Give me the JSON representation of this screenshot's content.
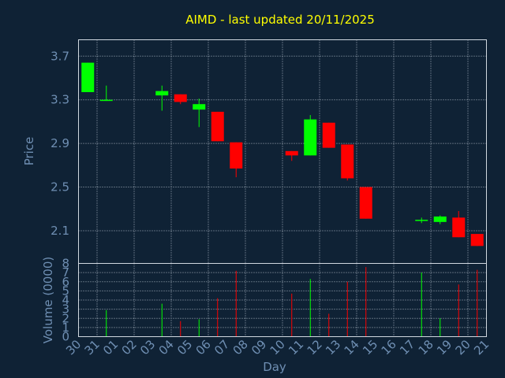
{
  "colors": {
    "background": "#0f2235",
    "title": "#ffff00",
    "axis_text": "#6f8fb3",
    "frame": "#d0d8e0",
    "grid": "#a8b4c0",
    "up": "#00ff00",
    "down": "#ff0000"
  },
  "chart_data": [
    {
      "type": "candlestick",
      "title": "AIMD - last updated 20/11/2025",
      "xlabel": "Day",
      "ylabel": "Price",
      "ylim": [
        1.8,
        3.85
      ],
      "y_ticks": [
        "3.7",
        "3.3",
        "2.9",
        "2.5",
        "2.1"
      ],
      "y_tick_values": [
        3.7,
        3.3,
        2.9,
        2.5,
        2.1
      ],
      "grid": true,
      "x_ticks": [
        "30",
        "31",
        "01",
        "02",
        "03",
        "04",
        "05",
        "06",
        "07",
        "08",
        "09",
        "10",
        "11",
        "12",
        "13",
        "14",
        "15",
        "16",
        "17",
        "18",
        "19",
        "20",
        "21"
      ],
      "candles": [
        {
          "slot": 0,
          "open": 3.37,
          "close": 3.64,
          "high": 3.64,
          "low": 3.37
        },
        {
          "slot": 1,
          "open": 3.29,
          "close": 3.3,
          "high": 3.43,
          "low": 3.29
        },
        {
          "slot": 4,
          "open": 3.34,
          "close": 3.38,
          "high": 3.43,
          "low": 3.2
        },
        {
          "slot": 5,
          "open": 3.35,
          "close": 3.28,
          "high": 3.35,
          "low": 3.26
        },
        {
          "slot": 6,
          "open": 3.21,
          "close": 3.26,
          "high": 3.31,
          "low": 3.05
        },
        {
          "slot": 7,
          "open": 3.19,
          "close": 2.92,
          "high": 3.19,
          "low": 2.92
        },
        {
          "slot": 8,
          "open": 2.91,
          "close": 2.67,
          "high": 2.91,
          "low": 2.59
        },
        {
          "slot": 11,
          "open": 2.83,
          "close": 2.79,
          "high": 2.83,
          "low": 2.74
        },
        {
          "slot": 12,
          "open": 2.79,
          "close": 3.12,
          "high": 3.16,
          "low": 2.79
        },
        {
          "slot": 13,
          "open": 3.09,
          "close": 2.86,
          "high": 3.09,
          "low": 2.86
        },
        {
          "slot": 14,
          "open": 2.89,
          "close": 2.58,
          "high": 2.89,
          "low": 2.56
        },
        {
          "slot": 15,
          "open": 2.5,
          "close": 2.21,
          "high": 2.5,
          "low": 2.21
        },
        {
          "slot": 18,
          "open": 2.19,
          "close": 2.2,
          "high": 2.22,
          "low": 2.17
        },
        {
          "slot": 19,
          "open": 2.18,
          "close": 2.23,
          "high": 2.24,
          "low": 2.16
        },
        {
          "slot": 20,
          "open": 2.22,
          "close": 2.04,
          "high": 2.28,
          "low": 2.04
        },
        {
          "slot": 21,
          "open": 2.07,
          "close": 1.96,
          "high": 2.07,
          "low": 1.96
        }
      ]
    },
    {
      "type": "bar",
      "ylabel": "Volume (0000)",
      "ylim": [
        0,
        8
      ],
      "y_ticks": [
        "0",
        "1",
        "2",
        "3",
        "4",
        "5",
        "6",
        "7",
        "8"
      ],
      "y_tick_values": [
        0,
        1,
        2,
        3,
        4,
        5,
        6,
        7,
        8
      ],
      "grid": true,
      "bars": [
        {
          "slot": 1,
          "value": 2.9,
          "direction": "up"
        },
        {
          "slot": 4,
          "value": 3.6,
          "direction": "up"
        },
        {
          "slot": 5,
          "value": 1.7,
          "direction": "down"
        },
        {
          "slot": 6,
          "value": 1.9,
          "direction": "up"
        },
        {
          "slot": 7,
          "value": 4.2,
          "direction": "down"
        },
        {
          "slot": 8,
          "value": 7.2,
          "direction": "down"
        },
        {
          "slot": 11,
          "value": 4.7,
          "direction": "down"
        },
        {
          "slot": 12,
          "value": 6.3,
          "direction": "up"
        },
        {
          "slot": 13,
          "value": 2.5,
          "direction": "down"
        },
        {
          "slot": 14,
          "value": 6.0,
          "direction": "down"
        },
        {
          "slot": 15,
          "value": 7.6,
          "direction": "down"
        },
        {
          "slot": 18,
          "value": 7.0,
          "direction": "up"
        },
        {
          "slot": 19,
          "value": 2.0,
          "direction": "up"
        },
        {
          "slot": 20,
          "value": 5.7,
          "direction": "down"
        },
        {
          "slot": 21,
          "value": 7.3,
          "direction": "down"
        }
      ]
    }
  ]
}
